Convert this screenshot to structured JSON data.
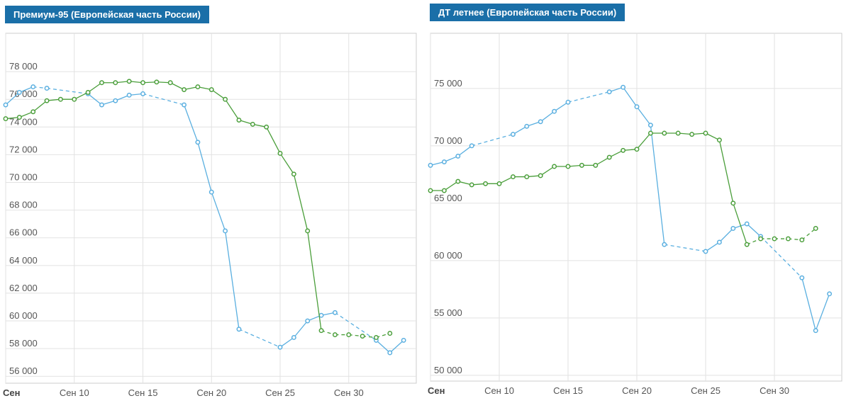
{
  "chart_data": [
    {
      "type": "line",
      "title": "Премиум-95 (Европейская часть России)",
      "x_tick_labels": [
        "Сен",
        "Сен 10",
        "Сен 15",
        "Сен 20",
        "Сен 25",
        "Сен 30"
      ],
      "x_tick_days": [
        5,
        10,
        15,
        20,
        25,
        30
      ],
      "xlim": [
        5,
        35.5
      ],
      "ylim": [
        55500,
        80000
      ],
      "y_ticks": [
        56000,
        58000,
        60000,
        62000,
        64000,
        66000,
        68000,
        70000,
        72000,
        74000,
        76000,
        78000
      ],
      "y_tick_labels": [
        "56 000",
        "58 000",
        "60 000",
        "62 000",
        "64 000",
        "66 000",
        "68 000",
        "70 000",
        "72 000",
        "74 000",
        "76 000",
        "78 000"
      ],
      "grid": true,
      "colors": {
        "series_blue": "#5aafe0",
        "series_green": "#4a9e3a",
        "grid": "#e2e2e2"
      },
      "series": [
        {
          "name": "blue",
          "color": "#5aafe0",
          "points": [
            {
              "x": 5,
              "y": 75600
            },
            {
              "x": 6,
              "y": 76500
            },
            {
              "x": 7,
              "y": 76900
            },
            {
              "x": 8,
              "y": 76800
            },
            {
              "x": 11,
              "y": 76400
            },
            {
              "x": 12,
              "y": 75600
            },
            {
              "x": 13,
              "y": 75900
            },
            {
              "x": 14,
              "y": 76300
            },
            {
              "x": 15,
              "y": 76400
            },
            {
              "x": 18,
              "y": 75600
            },
            {
              "x": 19,
              "y": 72900
            },
            {
              "x": 20,
              "y": 69300
            },
            {
              "x": 21,
              "y": 66500
            },
            {
              "x": 22,
              "y": 59400
            },
            {
              "x": 25,
              "y": 58100
            },
            {
              "x": 26,
              "y": 58800
            },
            {
              "x": 27,
              "y": 60000
            },
            {
              "x": 28,
              "y": 60400
            },
            {
              "x": 29,
              "y": 60600
            },
            {
              "x": 32,
              "y": 58600
            },
            {
              "x": 33,
              "y": 57700
            },
            {
              "x": 34,
              "y": 58600
            }
          ],
          "segments": [
            "solid",
            "solid",
            "dashed",
            "dashed",
            "solid",
            "solid",
            "solid",
            "solid",
            "dashed",
            "solid",
            "solid",
            "solid",
            "solid",
            "dashed",
            "solid",
            "solid",
            "solid",
            "solid",
            "dashed",
            "solid",
            "solid"
          ]
        },
        {
          "name": "green",
          "color": "#4a9e3a",
          "points": [
            {
              "x": 5,
              "y": 74600
            },
            {
              "x": 6,
              "y": 74700
            },
            {
              "x": 7,
              "y": 75100
            },
            {
              "x": 8,
              "y": 75900
            },
            {
              "x": 9,
              "y": 76000
            },
            {
              "x": 10,
              "y": 76000
            },
            {
              "x": 11,
              "y": 76500
            },
            {
              "x": 12,
              "y": 77200
            },
            {
              "x": 13,
              "y": 77200
            },
            {
              "x": 14,
              "y": 77300
            },
            {
              "x": 15,
              "y": 77200
            },
            {
              "x": 16,
              "y": 77250
            },
            {
              "x": 17,
              "y": 77200
            },
            {
              "x": 18,
              "y": 76700
            },
            {
              "x": 19,
              "y": 76900
            },
            {
              "x": 20,
              "y": 76700
            },
            {
              "x": 21,
              "y": 76000
            },
            {
              "x": 22,
              "y": 74500
            },
            {
              "x": 23,
              "y": 74200
            },
            {
              "x": 24,
              "y": 74000
            },
            {
              "x": 25,
              "y": 72100
            },
            {
              "x": 26,
              "y": 70600
            },
            {
              "x": 27,
              "y": 66500
            },
            {
              "x": 28,
              "y": 59300
            },
            {
              "x": 29,
              "y": 59000
            },
            {
              "x": 30,
              "y": 59000
            },
            {
              "x": 31,
              "y": 58900
            },
            {
              "x": 32,
              "y": 58800
            },
            {
              "x": 33,
              "y": 59100
            }
          ],
          "segments": [
            "solid",
            "solid",
            "solid",
            "solid",
            "solid",
            "solid",
            "solid",
            "solid",
            "solid",
            "solid",
            "solid",
            "solid",
            "solid",
            "solid",
            "solid",
            "solid",
            "solid",
            "solid",
            "solid",
            "solid",
            "solid",
            "solid",
            "solid",
            "dashed",
            "dashed",
            "dashed",
            "dashed",
            "dashed"
          ]
        }
      ]
    },
    {
      "type": "line",
      "title": "ДТ летнее (Европейская часть России)",
      "x_tick_labels": [
        "Сен",
        "Сен 10",
        "Сен 15",
        "Сен 20",
        "Сен 25",
        "Сен 30"
      ],
      "x_tick_days": [
        5,
        10,
        15,
        20,
        25,
        30
      ],
      "xlim": [
        5,
        35.5
      ],
      "ylim": [
        49500,
        79000
      ],
      "y_ticks": [
        50000,
        55000,
        60000,
        65000,
        70000,
        75000
      ],
      "y_tick_labels": [
        "50 000",
        "55 000",
        "60 000",
        "65 000",
        "70 000",
        "75 000"
      ],
      "grid": true,
      "colors": {
        "series_blue": "#5aafe0",
        "series_green": "#4a9e3a",
        "grid": "#e2e2e2"
      },
      "series": [
        {
          "name": "blue",
          "color": "#5aafe0",
          "points": [
            {
              "x": 5,
              "y": 68300
            },
            {
              "x": 6,
              "y": 68600
            },
            {
              "x": 7,
              "y": 69100
            },
            {
              "x": 8,
              "y": 70000
            },
            {
              "x": 11,
              "y": 71000
            },
            {
              "x": 12,
              "y": 71700
            },
            {
              "x": 13,
              "y": 72100
            },
            {
              "x": 14,
              "y": 73000
            },
            {
              "x": 15,
              "y": 73800
            },
            {
              "x": 18,
              "y": 74700
            },
            {
              "x": 19,
              "y": 75100
            },
            {
              "x": 20,
              "y": 73400
            },
            {
              "x": 21,
              "y": 71800
            },
            {
              "x": 22,
              "y": 61400
            },
            {
              "x": 25,
              "y": 60800
            },
            {
              "x": 26,
              "y": 61600
            },
            {
              "x": 27,
              "y": 62800
            },
            {
              "x": 28,
              "y": 63200
            },
            {
              "x": 29,
              "y": 62100
            },
            {
              "x": 32,
              "y": 58500
            },
            {
              "x": 33,
              "y": 53900
            },
            {
              "x": 34,
              "y": 57100
            }
          ],
          "segments": [
            "solid",
            "solid",
            "solid",
            "dashed",
            "solid",
            "solid",
            "solid",
            "solid",
            "dashed",
            "solid",
            "solid",
            "solid",
            "solid",
            "dashed",
            "solid",
            "solid",
            "solid",
            "solid",
            "dashed",
            "solid",
            "solid"
          ]
        },
        {
          "name": "green",
          "color": "#4a9e3a",
          "points": [
            {
              "x": 5,
              "y": 66100
            },
            {
              "x": 6,
              "y": 66100
            },
            {
              "x": 7,
              "y": 66900
            },
            {
              "x": 8,
              "y": 66600
            },
            {
              "x": 9,
              "y": 66700
            },
            {
              "x": 10,
              "y": 66700
            },
            {
              "x": 11,
              "y": 67300
            },
            {
              "x": 12,
              "y": 67300
            },
            {
              "x": 13,
              "y": 67400
            },
            {
              "x": 14,
              "y": 68200
            },
            {
              "x": 15,
              "y": 68200
            },
            {
              "x": 16,
              "y": 68300
            },
            {
              "x": 17,
              "y": 68300
            },
            {
              "x": 18,
              "y": 69000
            },
            {
              "x": 19,
              "y": 69600
            },
            {
              "x": 20,
              "y": 69700
            },
            {
              "x": 21,
              "y": 71100
            },
            {
              "x": 22,
              "y": 71100
            },
            {
              "x": 23,
              "y": 71100
            },
            {
              "x": 24,
              "y": 71000
            },
            {
              "x": 25,
              "y": 71100
            },
            {
              "x": 26,
              "y": 70500
            },
            {
              "x": 27,
              "y": 65000
            },
            {
              "x": 28,
              "y": 61400
            },
            {
              "x": 29,
              "y": 61900
            },
            {
              "x": 30,
              "y": 61900
            },
            {
              "x": 31,
              "y": 61900
            },
            {
              "x": 32,
              "y": 61800
            },
            {
              "x": 33,
              "y": 62800
            }
          ],
          "segments": [
            "solid",
            "solid",
            "solid",
            "solid",
            "solid",
            "solid",
            "solid",
            "solid",
            "solid",
            "solid",
            "solid",
            "solid",
            "solid",
            "solid",
            "solid",
            "solid",
            "solid",
            "solid",
            "solid",
            "solid",
            "solid",
            "solid",
            "solid",
            "dashed",
            "dashed",
            "dashed",
            "dashed",
            "dashed"
          ]
        }
      ]
    }
  ]
}
